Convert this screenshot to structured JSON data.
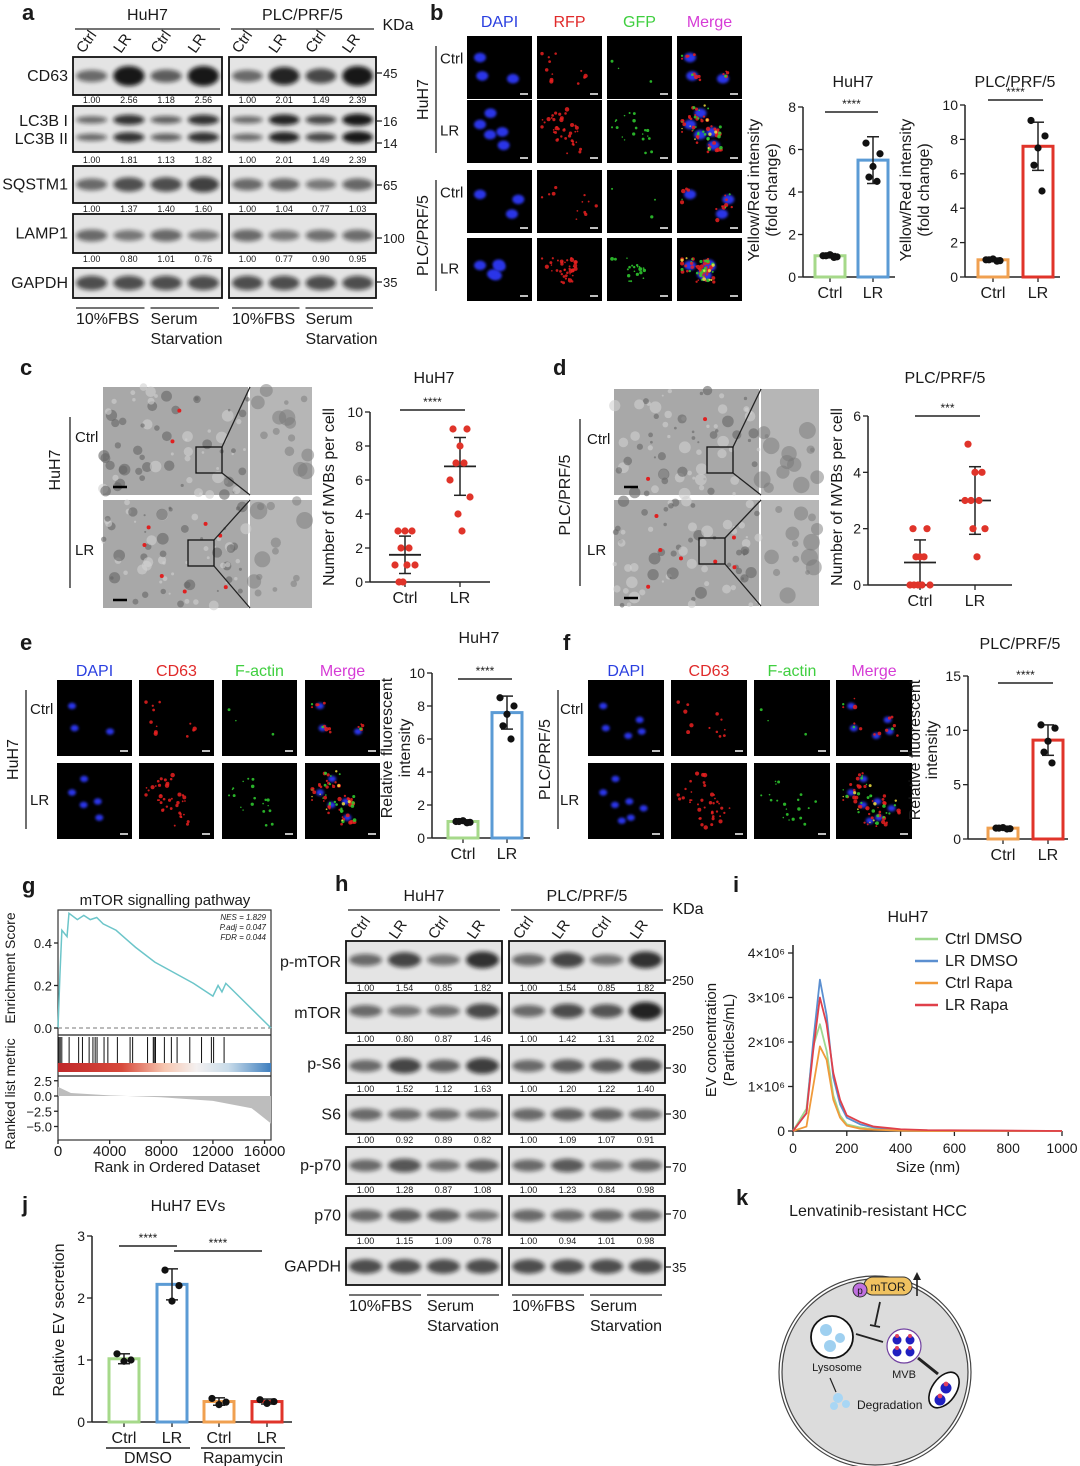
{
  "panel_a": {
    "label": "a",
    "groups": [
      "HuH7",
      "PLC/PRF/5"
    ],
    "lanes": [
      "Ctrl",
      "LR",
      "Ctrl",
      "LR"
    ],
    "unit": "KDa",
    "blots": [
      {
        "proteins": [
          "CD63"
        ],
        "markers": [
          "45"
        ],
        "quant": [
          [
            "1.00",
            "2.56",
            "1.18",
            "2.56"
          ],
          [
            "1.00",
            "2.01",
            "1.49",
            "2.39"
          ]
        ]
      },
      {
        "proteins": [
          "LC3B I",
          "LC3B II"
        ],
        "markers": [
          "16",
          "14"
        ],
        "quant": [
          [
            "1.00",
            "1.81",
            "1.13",
            "1.82"
          ],
          [
            "1.00",
            "2.01",
            "1.49",
            "2.39"
          ]
        ]
      },
      {
        "proteins": [
          "SQSTM1"
        ],
        "markers": [
          "65"
        ],
        "quant": [
          [
            "1.00",
            "1.37",
            "1.40",
            "1.60"
          ],
          [
            "1.00",
            "1.04",
            "0.77",
            "1.03"
          ]
        ]
      },
      {
        "proteins": [
          "LAMP1"
        ],
        "markers": [
          "100"
        ],
        "quant": [
          [
            "1.00",
            "0.80",
            "1.01",
            "0.76"
          ],
          [
            "1.00",
            "0.77",
            "0.90",
            "0.95"
          ]
        ]
      },
      {
        "proteins": [
          "GAPDH"
        ],
        "markers": [
          "35"
        ]
      }
    ],
    "conditions": [
      [
        "10%FBS"
      ],
      [
        "Serum",
        "Starvation"
      ]
    ]
  },
  "panel_b": {
    "label": "b",
    "channels": [
      {
        "name": "DAPI",
        "color": "#2a3fe0"
      },
      {
        "name": "RFP",
        "color": "#e02a2a"
      },
      {
        "name": "GFP",
        "color": "#3fcf3f"
      },
      {
        "name": "Merge",
        "color": "#d63cd6"
      }
    ],
    "groups": [
      {
        "name": "HuH7",
        "rows": [
          "Ctrl",
          "LR"
        ]
      },
      {
        "name": "PLC/PRF/5",
        "rows": [
          "Ctrl",
          "LR"
        ]
      }
    ]
  },
  "panel_c": {
    "label": "c",
    "group": "HuH7",
    "rows": [
      "Ctrl",
      "LR"
    ]
  },
  "panel_d": {
    "label": "d",
    "group": "PLC/PRF/5",
    "rows": [
      "Ctrl",
      "LR"
    ]
  },
  "panel_e": {
    "label": "e",
    "channels": [
      {
        "name": "DAPI",
        "color": "#2a3fe0"
      },
      {
        "name": "CD63",
        "color": "#e02a2a"
      },
      {
        "name": "F-actin",
        "color": "#3fcf3f"
      },
      {
        "name": "Merge",
        "color": "#d63cd6"
      }
    ],
    "groups": [
      {
        "name": "HuH7",
        "rows": [
          "Ctrl",
          "LR"
        ]
      }
    ]
  },
  "panel_f": {
    "label": "f",
    "channels": [
      {
        "name": "DAPI",
        "color": "#2a3fe0"
      },
      {
        "name": "CD63",
        "color": "#e02a2a"
      },
      {
        "name": "F-actin",
        "color": "#3fcf3f"
      },
      {
        "name": "Merge",
        "color": "#d63cd6"
      }
    ],
    "groups": [
      {
        "name": "PLC/PRF/5",
        "rows": [
          "Ctrl",
          "LR"
        ]
      }
    ]
  },
  "panel_g": {
    "label": "g"
  },
  "panel_h": {
    "label": "h",
    "groups": [
      "HuH7",
      "PLC/PRF/5"
    ],
    "lanes": [
      "Ctrl",
      "LR",
      "Ctrl",
      "LR"
    ],
    "unit": "KDa",
    "blots": [
      {
        "proteins": [
          "p-mTOR"
        ],
        "markers": [
          "250"
        ],
        "quant": [
          [
            "1.00",
            "1.54",
            "0.85",
            "1.82"
          ],
          [
            "1.00",
            "1.54",
            "0.85",
            "1.82"
          ]
        ]
      },
      {
        "proteins": [
          "mTOR"
        ],
        "markers": [
          "250"
        ],
        "quant": [
          [
            "1.00",
            "0.80",
            "0.87",
            "1.46"
          ],
          [
            "1.00",
            "1.42",
            "1.31",
            "2.02"
          ]
        ]
      },
      {
        "proteins": [
          "p-S6"
        ],
        "markers": [
          "30"
        ],
        "quant": [
          [
            "1.00",
            "1.52",
            "1.12",
            "1.63"
          ],
          [
            "1.00",
            "1.20",
            "1.22",
            "1.40"
          ]
        ]
      },
      {
        "proteins": [
          "S6"
        ],
        "markers": [
          "30"
        ],
        "quant": [
          [
            "1.00",
            "0.92",
            "0.89",
            "0.82"
          ],
          [
            "1.00",
            "1.09",
            "1.07",
            "0.91"
          ]
        ]
      },
      {
        "proteins": [
          "p-p70"
        ],
        "markers": [
          "70"
        ],
        "quant": [
          [
            "1.00",
            "1.28",
            "0.87",
            "1.08"
          ],
          [
            "1.00",
            "1.23",
            "0.84",
            "0.98"
          ]
        ]
      },
      {
        "proteins": [
          "p70"
        ],
        "markers": [
          "70"
        ],
        "quant": [
          [
            "1.00",
            "1.15",
            "1.09",
            "0.78"
          ],
          [
            "1.00",
            "0.94",
            "1.01",
            "0.98"
          ]
        ]
      },
      {
        "proteins": [
          "GAPDH"
        ],
        "markers": [
          "35"
        ]
      }
    ],
    "conditions": [
      [
        "10%FBS"
      ],
      [
        "Serum",
        "Starvation"
      ]
    ]
  },
  "panel_i": {
    "label": "i"
  },
  "panel_j": {
    "label": "j"
  },
  "panel_k": {
    "label": "k",
    "title": "Lenvatinib-resistant HCC",
    "p_label": "p",
    "mtor_label": "mTOR",
    "lysosome_label": "Lysosome",
    "mvb_label": "MVB",
    "degradation_label": "Degradation"
  },
  "chart_data": [
    {
      "type": "bar",
      "title": "HuH7",
      "ylabel": [
        "Yellow/Red intensity",
        "(fold change)"
      ],
      "categories": [
        "Ctrl",
        "LR"
      ],
      "ylim": [
        0,
        8
      ],
      "yticks": [
        0,
        2,
        4,
        6,
        8
      ],
      "groups": [
        {
          "mean": 1.0,
          "sd": 0.1,
          "color": "#a6d98a",
          "points": [
            1.0,
            0.95,
            1.05,
            1.0,
            0.92
          ]
        },
        {
          "mean": 5.5,
          "sd": 1.1,
          "color": "#5b9bd5",
          "points": [
            6.3,
            5.8,
            5.2,
            4.7,
            4.5
          ]
        }
      ],
      "significance": [
        {
          "label": "****",
          "from": 0,
          "to": 1
        }
      ]
    },
    {
      "type": "bar",
      "title": "PLC/PRF/5",
      "ylabel": [
        "Yellow/Red intensity",
        "(fold change)"
      ],
      "categories": [
        "Ctrl",
        "LR"
      ],
      "ylim": [
        0,
        10
      ],
      "yticks": [
        0,
        2,
        4,
        6,
        8,
        10
      ],
      "groups": [
        {
          "mean": 1.0,
          "sd": 0.1,
          "color": "#f0a050",
          "points": [
            1.0,
            0.95,
            1.05,
            1.0,
            0.92
          ]
        },
        {
          "mean": 7.6,
          "sd": 1.4,
          "color": "#e0342a",
          "points": [
            9.1,
            8.2,
            7.5,
            6.5,
            5.0
          ]
        }
      ],
      "significance": [
        {
          "label": "****",
          "from": 0,
          "to": 1
        }
      ]
    },
    {
      "type": "scatter",
      "title": "HuH7",
      "ylabel": [
        "Number of MVBs per cell"
      ],
      "categories": [
        "Ctrl",
        "LR"
      ],
      "ylim": [
        0,
        10
      ],
      "yticks": [
        0,
        2,
        4,
        6,
        8,
        10
      ],
      "groups": [
        {
          "mean": 1.6,
          "sd": 1.1,
          "color": "#e0342a",
          "points": [
            3,
            3,
            3,
            2,
            2,
            1,
            1,
            0,
            1,
            0
          ]
        },
        {
          "mean": 6.8,
          "sd": 1.7,
          "color": "#e0342a",
          "points": [
            9,
            9,
            8,
            7,
            7,
            6,
            5,
            4,
            3
          ]
        }
      ],
      "significance": [
        {
          "label": "****",
          "from": 0,
          "to": 1
        }
      ]
    },
    {
      "type": "scatter",
      "title": "PLC/PRF/5",
      "ylabel": [
        "Number of MVBs per cell"
      ],
      "categories": [
        "Ctrl",
        "LR"
      ],
      "ylim": [
        0,
        6
      ],
      "yticks": [
        0,
        2,
        4,
        6
      ],
      "groups": [
        {
          "mean": 0.8,
          "sd": 0.8,
          "color": "#e0342a",
          "points": [
            2,
            2,
            1,
            1,
            1,
            0,
            0,
            0,
            0,
            0
          ]
        },
        {
          "mean": 3.0,
          "sd": 1.2,
          "color": "#e0342a",
          "points": [
            5,
            4,
            4,
            3,
            3,
            3,
            2,
            2,
            1
          ]
        }
      ],
      "significance": [
        {
          "label": "***",
          "from": 0,
          "to": 1
        }
      ]
    },
    {
      "type": "bar",
      "title": "HuH7",
      "ylabel": [
        "Relative fluorescent",
        "intensity"
      ],
      "categories": [
        "Ctrl",
        "LR"
      ],
      "ylim": [
        0,
        10
      ],
      "yticks": [
        0,
        2,
        4,
        6,
        8,
        10
      ],
      "groups": [
        {
          "mean": 1.0,
          "sd": 0.1,
          "color": "#a6d98a",
          "points": [
            1.0,
            0.95,
            1.05,
            1.0,
            0.92
          ]
        },
        {
          "mean": 7.6,
          "sd": 1.0,
          "color": "#5b9bd5",
          "points": [
            8.5,
            8.0,
            7.5,
            6.8,
            6.0
          ]
        }
      ],
      "significance": [
        {
          "label": "****",
          "from": 0,
          "to": 1
        }
      ]
    },
    {
      "type": "bar",
      "title": "PLC/PRF/5",
      "ylabel": [
        "Relative fluorescent",
        "intensity"
      ],
      "categories": [
        "Ctrl",
        "LR"
      ],
      "ylim": [
        0,
        15
      ],
      "yticks": [
        0,
        5,
        10,
        15
      ],
      "groups": [
        {
          "mean": 1.0,
          "sd": 0.1,
          "color": "#f0a050",
          "points": [
            1.0,
            0.95,
            1.05,
            1.0,
            0.92
          ]
        },
        {
          "mean": 9.1,
          "sd": 1.4,
          "color": "#e0342a",
          "points": [
            10.5,
            10.2,
            9.0,
            8.0,
            7.0
          ]
        }
      ],
      "significance": [
        {
          "label": "****",
          "from": 0,
          "to": 1
        }
      ]
    },
    {
      "type": "line",
      "title": "mTOR signalling pathway",
      "ylabel": "Enrichment Score",
      "ylabel2": "Ranked list metric",
      "xlabel": "Rank in Ordered Dataset",
      "xlim": [
        0,
        16500
      ],
      "xticks": [
        0,
        4000,
        8000,
        12000,
        16000
      ],
      "yticks": [
        "0.0",
        "0.2",
        "0.4"
      ],
      "metric_ticks": [
        "2.5",
        "0.0",
        "−2.5",
        "−5.0"
      ],
      "annotations": [
        "NES = 1.829",
        "P.adj = 0.047",
        "FDR = 0.044"
      ],
      "line_color": "#6cc5c9",
      "running_es": [
        [
          0,
          0
        ],
        [
          150,
          0.25
        ],
        [
          300,
          0.46
        ],
        [
          700,
          0.43
        ],
        [
          850,
          0.54
        ],
        [
          1500,
          0.51
        ],
        [
          2000,
          0.53
        ],
        [
          2500,
          0.51
        ],
        [
          3000,
          0.52
        ],
        [
          3500,
          0.49
        ],
        [
          4500,
          0.46
        ],
        [
          6000,
          0.38
        ],
        [
          7500,
          0.31
        ],
        [
          9000,
          0.26
        ],
        [
          10500,
          0.21
        ],
        [
          11500,
          0.17
        ],
        [
          12000,
          0.15
        ],
        [
          12400,
          0.2
        ],
        [
          12700,
          0.17
        ],
        [
          13000,
          0.21
        ],
        [
          14500,
          0.12
        ],
        [
          16500,
          0
        ]
      ],
      "hits": [
        74,
        172,
        295,
        861,
        1599,
        1894,
        2411,
        2706,
        2878,
        3026,
        3567,
        3862,
        4600,
        5584,
        5781,
        6937,
        7380,
        7454,
        7552,
        8241,
        8782,
        9225,
        10209,
        11119,
        11882,
        12054,
        12866
      ],
      "ranked_metric": [
        [
          0,
          1.5
        ],
        [
          1000,
          0.5
        ],
        [
          4000,
          0.1
        ],
        [
          8000,
          -0.2
        ],
        [
          12000,
          -0.8
        ],
        [
          15000,
          -2
        ],
        [
          16500,
          -4.5
        ]
      ]
    },
    {
      "type": "line",
      "title": "HuH7",
      "ylabel": [
        "EV concentration",
        "(Particles/mL)"
      ],
      "xlabel": "Size (nm)",
      "xlim": [
        0,
        1000
      ],
      "ylim": [
        0,
        4000000
      ],
      "xticks": [
        0,
        200,
        400,
        600,
        800,
        1000
      ],
      "ytick_labels": [
        "0",
        "1×10⁶",
        "2×10⁶",
        "3×10⁶",
        "4×10⁶"
      ],
      "legend": "top-right",
      "x": [
        0,
        50,
        75,
        100,
        125,
        150,
        175,
        200,
        250,
        300,
        400,
        500,
        1000
      ],
      "series": [
        {
          "name": "Ctrl DMSO",
          "color": "#9ed88f",
          "values": [
            0,
            500000.0,
            1900000.0,
            2400000.0,
            1800000.0,
            800000.0,
            350000.0,
            150000.0,
            80000.0,
            40000.0,
            20000.0,
            10000.0,
            0
          ]
        },
        {
          "name": "LR DMSO",
          "color": "#5b8fd0",
          "values": [
            0,
            400000.0,
            2000000.0,
            3400000.0,
            2600000.0,
            1200000.0,
            600000.0,
            300000.0,
            150000.0,
            80000.0,
            30000.0,
            10000.0,
            0
          ]
        },
        {
          "name": "Ctrl Rapa",
          "color": "#f09a3a",
          "values": [
            0,
            100000.0,
            1000000.0,
            1900000.0,
            1600000.0,
            700000.0,
            300000.0,
            120000.0,
            50000.0,
            30000.0,
            10000.0,
            0,
            0
          ]
        },
        {
          "name": "LR Rapa",
          "color": "#e0404a",
          "values": [
            0,
            400000.0,
            1800000.0,
            3000000.0,
            2400000.0,
            1300000.0,
            700000.0,
            350000.0,
            200000.0,
            100000.0,
            40000.0,
            20000.0,
            0
          ]
        }
      ]
    },
    {
      "type": "bar",
      "title": "HuH7 EVs",
      "ylabel": [
        "Relative EV secretion"
      ],
      "categories": [
        "Ctrl",
        "LR",
        "Ctrl",
        "LR"
      ],
      "group_labels": [
        "DMSO",
        "Rapamycin"
      ],
      "ylim": [
        0,
        3
      ],
      "yticks": [
        0,
        1,
        2,
        3
      ],
      "groups": [
        {
          "mean": 1.02,
          "sd": 0.08,
          "color": "#a6d98a",
          "points": [
            1.1,
            1.0,
            0.98
          ]
        },
        {
          "mean": 2.22,
          "sd": 0.25,
          "color": "#5b9bd5",
          "points": [
            2.45,
            2.2,
            1.95
          ]
        },
        {
          "mean": 0.33,
          "sd": 0.06,
          "color": "#f0a050",
          "points": [
            0.38,
            0.32,
            0.28
          ]
        },
        {
          "mean": 0.33,
          "sd": 0.04,
          "color": "#e0342a",
          "points": [
            0.36,
            0.33,
            0.3
          ]
        }
      ],
      "significance": [
        {
          "label": "****",
          "from": 0,
          "to": 1
        },
        {
          "label": "****",
          "from": 1,
          "to": 3
        }
      ]
    }
  ]
}
